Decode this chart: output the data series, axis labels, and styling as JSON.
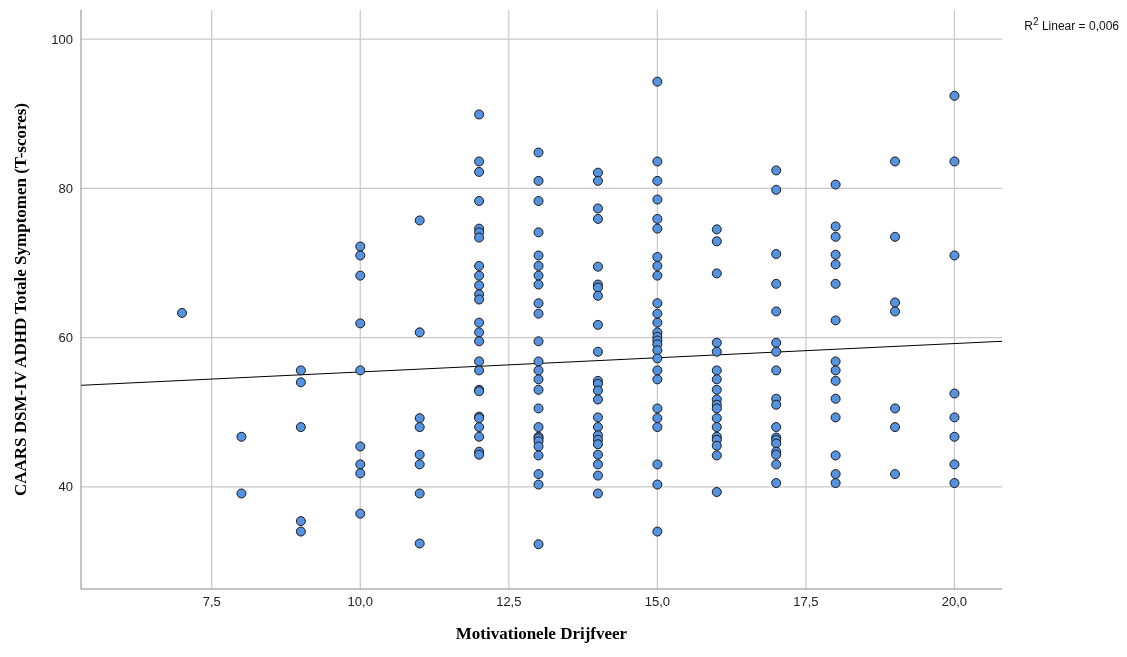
{
  "chart_data": {
    "type": "scatter",
    "xlabel": "Motivationele Drijfveer",
    "ylabel": "CAARS DSM-IV ADHD Totale Symptomen (T-scores)",
    "annotations": [
      "R$^{2}$ Linear = 0,006"
    ],
    "xlim": [
      5.3,
      20.8
    ],
    "ylim": [
      26.3,
      103.9
    ],
    "xticks": [
      {
        "value": 7.5,
        "label": "7,5"
      },
      {
        "value": 10,
        "label": "10,0"
      },
      {
        "value": 12.5,
        "label": "12,5"
      },
      {
        "value": 15,
        "label": "15,0"
      },
      {
        "value": 17.5,
        "label": "17,5"
      },
      {
        "value": 20,
        "label": "20,0"
      }
    ],
    "yticks": [
      40,
      60,
      80,
      100
    ],
    "grid": true,
    "marker": "circle",
    "series": [
      {
        "color": "#5592e0",
        "x": [
          7,
          8,
          8,
          9,
          9,
          9,
          9,
          9,
          10,
          10,
          10,
          10,
          10,
          10,
          10,
          10,
          10,
          11,
          11,
          11,
          11,
          11,
          11,
          11,
          11,
          12,
          12,
          12,
          12,
          12,
          12,
          12,
          12,
          12,
          12,
          12,
          12,
          12,
          12,
          12,
          12,
          12,
          12,
          12,
          12,
          12,
          12,
          12,
          12,
          12,
          13,
          13,
          13,
          13,
          13,
          13,
          13,
          13,
          13,
          13,
          13,
          13,
          13,
          13,
          13,
          13,
          13,
          13,
          13,
          13,
          13,
          13,
          13,
          13,
          13,
          14,
          14,
          14,
          14,
          14,
          14,
          14,
          14,
          14,
          14,
          14,
          14,
          14,
          14,
          14,
          14,
          14,
          14,
          14,
          14,
          14,
          14,
          14,
          15,
          15,
          15,
          15,
          15,
          15,
          15,
          15,
          15,
          15,
          15,
          15,
          15,
          15,
          15,
          15,
          15,
          15,
          15,
          15,
          15,
          15,
          15,
          15,
          15,
          15,
          16,
          16,
          16,
          16,
          16,
          16,
          16,
          16,
          16,
          16,
          16,
          16,
          16,
          16,
          16,
          16,
          16,
          16,
          17,
          17,
          17,
          17,
          17,
          17,
          17,
          17,
          17,
          17,
          17,
          17,
          17,
          17,
          17,
          17,
          17,
          17,
          18,
          18,
          18,
          18,
          18,
          18,
          18,
          18,
          18,
          18,
          18,
          18,
          18,
          18,
          18,
          19,
          19,
          19,
          19,
          19,
          19,
          19,
          20,
          20,
          20,
          20,
          20,
          20,
          20,
          20
        ],
        "values": [
          63.3,
          46.7,
          39.1,
          55.6,
          54.0,
          48.0,
          35.4,
          34.0,
          72.2,
          71.0,
          68.3,
          61.9,
          55.6,
          45.4,
          43.0,
          41.8,
          36.4,
          75.7,
          60.7,
          49.2,
          48.0,
          44.3,
          43.0,
          39.1,
          32.4,
          89.9,
          83.6,
          82.2,
          78.3,
          74.6,
          74.1,
          73.4,
          69.6,
          68.3,
          67.0,
          65.8,
          65.1,
          62.0,
          60.7,
          59.5,
          56.8,
          55.6,
          53.0,
          52.8,
          49.4,
          49.2,
          48.0,
          46.7,
          44.7,
          44.3,
          84.8,
          81.0,
          78.3,
          74.1,
          71.0,
          69.6,
          68.3,
          67.1,
          64.6,
          63.2,
          59.5,
          56.8,
          55.6,
          54.4,
          53.0,
          50.5,
          48.0,
          46.7,
          46.5,
          46.1,
          45.4,
          44.2,
          41.7,
          40.3,
          32.3,
          82.1,
          81.0,
          77.3,
          75.9,
          69.5,
          67.1,
          66.7,
          65.6,
          61.7,
          58.1,
          54.2,
          53.8,
          52.9,
          51.7,
          49.3,
          48.0,
          46.9,
          46.3,
          45.7,
          44.3,
          43.0,
          41.5,
          39.1,
          94.3,
          83.6,
          81.0,
          78.5,
          75.9,
          74.6,
          70.8,
          69.6,
          68.3,
          64.6,
          63.2,
          62.0,
          60.7,
          60.1,
          59.6,
          59.1,
          58.3,
          57.2,
          55.6,
          54.4,
          50.5,
          49.2,
          48.0,
          43.0,
          40.3,
          34.0,
          74.5,
          72.9,
          68.6,
          59.3,
          58.1,
          55.6,
          54.4,
          53.0,
          51.7,
          51.0,
          50.5,
          49.2,
          48.0,
          46.7,
          46.3,
          45.5,
          44.2,
          39.3,
          82.4,
          79.8,
          71.2,
          67.2,
          63.5,
          59.3,
          58.1,
          55.6,
          51.8,
          51.0,
          48.0,
          46.6,
          46.3,
          45.8,
          44.7,
          44.3,
          43.0,
          40.5,
          80.5,
          74.9,
          73.5,
          71.1,
          69.8,
          67.2,
          62.3,
          56.8,
          55.6,
          54.2,
          51.8,
          49.3,
          44.2,
          41.7,
          40.5,
          83.6,
          73.5,
          64.7,
          63.5,
          50.5,
          48.0,
          41.7,
          92.4,
          83.6,
          71.0,
          52.5,
          49.3,
          46.7,
          43.0,
          40.5
        ]
      },
      {
        "type": "line",
        "color": "#000000",
        "marker": "none",
        "x": [
          5.3,
          20.8
        ],
        "values": [
          53.6,
          59.5
        ]
      }
    ]
  }
}
